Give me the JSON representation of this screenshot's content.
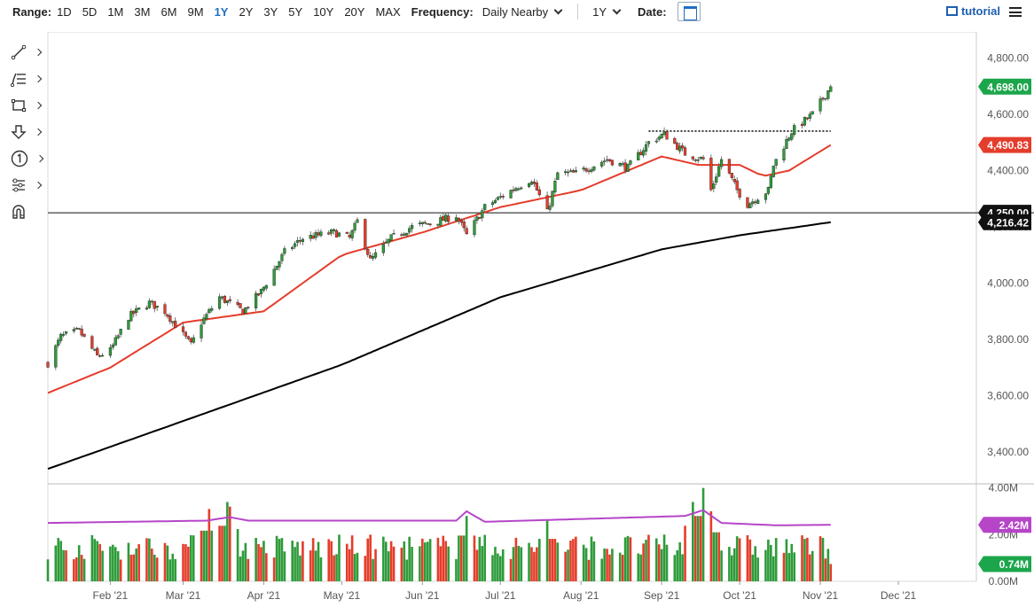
{
  "toolbar": {
    "range_label": "Range:",
    "ranges": [
      "1D",
      "5D",
      "1M",
      "3M",
      "6M",
      "9M",
      "1Y",
      "2Y",
      "3Y",
      "5Y",
      "10Y",
      "20Y",
      "MAX"
    ],
    "active_range": "1Y",
    "frequency_label": "Frequency:",
    "frequency_value": "Daily Nearby",
    "period_value": "1Y",
    "date_label": "Date:",
    "tutorial_label": "tutorial"
  },
  "tools": [
    {
      "name": "trendline-tool",
      "icon": "line-draw-icon"
    },
    {
      "name": "fibonacci-tool",
      "icon": "fib-lines-icon"
    },
    {
      "name": "rectangle-tool",
      "icon": "rectangle-icon"
    },
    {
      "name": "arrow-tool",
      "icon": "arrow-down-icon"
    },
    {
      "name": "annotation-tool",
      "icon": "numbered-circle-icon"
    },
    {
      "name": "indicator-tool",
      "icon": "sliders-icon"
    },
    {
      "name": "magnet-tool",
      "icon": "magnet-icon"
    }
  ],
  "colors": {
    "up": "#2e9b3a",
    "down": "#e43d2b",
    "ma_fast": "#e43d2b",
    "ma_slow": "#000000",
    "vol_ma": "#b645c8",
    "price_badge": "#1ca64c",
    "vol_badge": "#b645c8",
    "vol_now_badge": "#1ca64c"
  },
  "chart_data": {
    "type": "candlestick",
    "instrument": "",
    "x_ticks": [
      "Feb '21",
      "Mar '21",
      "Apr '21",
      "May '21",
      "Jun '21",
      "Jul '21",
      "Aug '21",
      "Sep '21",
      "Oct '21",
      "Nov '21",
      "Dec '21"
    ],
    "x_range": [
      "2021-01-08",
      "2021-12-31"
    ],
    "last_date": "2021-11-05",
    "price_axis": {
      "ylim": [
        3290,
        4880
      ],
      "ticks": [
        3400,
        3600,
        3800,
        4000,
        4200,
        4400,
        4600,
        4800
      ]
    },
    "price_anchors": [
      [
        "2021-01-08",
        3715
      ],
      [
        "2021-01-13",
        3810
      ],
      [
        "2021-01-20",
        3830
      ],
      [
        "2021-01-27",
        3740
      ],
      [
        "2021-02-01",
        3760
      ],
      [
        "2021-02-08",
        3880
      ],
      [
        "2021-02-16",
        3930
      ],
      [
        "2021-02-22",
        3900
      ],
      [
        "2021-03-04",
        3780
      ],
      [
        "2021-03-08",
        3860
      ],
      [
        "2021-03-15",
        3950
      ],
      [
        "2021-03-24",
        3900
      ],
      [
        "2021-03-31",
        3970
      ],
      [
        "2021-04-09",
        4110
      ],
      [
        "2021-04-16",
        4160
      ],
      [
        "2021-04-28",
        4180
      ],
      [
        "2021-05-04",
        4160
      ],
      [
        "2021-05-07",
        4220
      ],
      [
        "2021-05-12",
        4080
      ],
      [
        "2021-05-20",
        4160
      ],
      [
        "2021-05-28",
        4200
      ],
      [
        "2021-06-07",
        4220
      ],
      [
        "2021-06-14",
        4240
      ],
      [
        "2021-06-18",
        4170
      ],
      [
        "2021-06-25",
        4270
      ],
      [
        "2021-07-07",
        4340
      ],
      [
        "2021-07-13",
        4370
      ],
      [
        "2021-07-19",
        4250
      ],
      [
        "2021-07-23",
        4390
      ],
      [
        "2021-07-30",
        4390
      ],
      [
        "2021-08-11",
        4440
      ],
      [
        "2021-08-19",
        4410
      ],
      [
        "2021-08-27",
        4500
      ],
      [
        "2021-09-02",
        4530
      ],
      [
        "2021-09-10",
        4460
      ],
      [
        "2021-09-17",
        4440
      ],
      [
        "2021-09-20",
        4330
      ],
      [
        "2021-09-24",
        4440
      ],
      [
        "2021-09-30",
        4330
      ],
      [
        "2021-10-04",
        4280
      ],
      [
        "2021-10-12",
        4330
      ],
      [
        "2021-10-14",
        4420
      ],
      [
        "2021-10-21",
        4540
      ],
      [
        "2021-10-29",
        4600
      ],
      [
        "2021-11-05",
        4698
      ]
    ],
    "ma_fast_anchors": [
      [
        "2021-01-08",
        3610
      ],
      [
        "2021-02-01",
        3700
      ],
      [
        "2021-03-01",
        3860
      ],
      [
        "2021-04-01",
        3900
      ],
      [
        "2021-05-01",
        4100
      ],
      [
        "2021-06-01",
        4180
      ],
      [
        "2021-07-01",
        4270
      ],
      [
        "2021-08-01",
        4330
      ],
      [
        "2021-09-01",
        4450
      ],
      [
        "2021-09-15",
        4420
      ],
      [
        "2021-10-01",
        4420
      ],
      [
        "2021-10-10",
        4380
      ],
      [
        "2021-10-20",
        4400
      ],
      [
        "2021-11-05",
        4490.83
      ]
    ],
    "ma_slow_anchors": [
      [
        "2021-01-08",
        3340
      ],
      [
        "2021-03-01",
        3510
      ],
      [
        "2021-05-01",
        3710
      ],
      [
        "2021-07-01",
        3950
      ],
      [
        "2021-09-01",
        4120
      ],
      [
        "2021-10-01",
        4170
      ],
      [
        "2021-11-05",
        4216.42
      ]
    ],
    "resistance_line": {
      "from": "2021-08-27",
      "to": "2021-11-05",
      "value": 4540
    },
    "horizontal_line": {
      "value": 4250
    },
    "price_labels": [
      {
        "text": "4,698.00",
        "value": 4698,
        "role": "last"
      },
      {
        "text": "4,490.83",
        "value": 4490.83,
        "role": "ma_fast"
      },
      {
        "text": "4,250.00",
        "value": 4250,
        "role": "line"
      },
      {
        "text": "4,216.42",
        "value": 4216.42,
        "role": "ma_slow"
      }
    ],
    "volume_axis": {
      "ylim": [
        0,
        4.1
      ],
      "ticks": [
        {
          "v": 0,
          "t": "0.00M"
        },
        {
          "v": 2,
          "t": "2.00M"
        },
        {
          "v": 4,
          "t": "4.00M"
        }
      ]
    },
    "volume_base": 1.3,
    "volume_spikes": [
      [
        "2021-03-18",
        3.4
      ],
      [
        "2021-03-11",
        3.1
      ],
      [
        "2021-06-18",
        2.8
      ],
      [
        "2021-07-19",
        2.6
      ],
      [
        "2021-09-17",
        4.0
      ],
      [
        "2021-09-13",
        3.4
      ],
      [
        "2021-09-20",
        3.0
      ],
      [
        "2021-03-19",
        3.2
      ]
    ],
    "volume_ma_anchors": [
      [
        "2021-01-08",
        2.5
      ],
      [
        "2021-03-10",
        2.6
      ],
      [
        "2021-03-19",
        2.75
      ],
      [
        "2021-03-26",
        2.6
      ],
      [
        "2021-06-14",
        2.6
      ],
      [
        "2021-06-18",
        3.0
      ],
      [
        "2021-06-25",
        2.55
      ],
      [
        "2021-09-10",
        2.8
      ],
      [
        "2021-09-17",
        3.05
      ],
      [
        "2021-09-24",
        2.5
      ],
      [
        "2021-10-15",
        2.4
      ],
      [
        "2021-11-05",
        2.42
      ]
    ],
    "volume_labels": [
      {
        "text": "2.42M",
        "value": 2.42,
        "role": "vol_ma"
      },
      {
        "text": "0.74M",
        "value": 0.74,
        "role": "vol_now"
      }
    ],
    "volume_last": 0.74
  }
}
